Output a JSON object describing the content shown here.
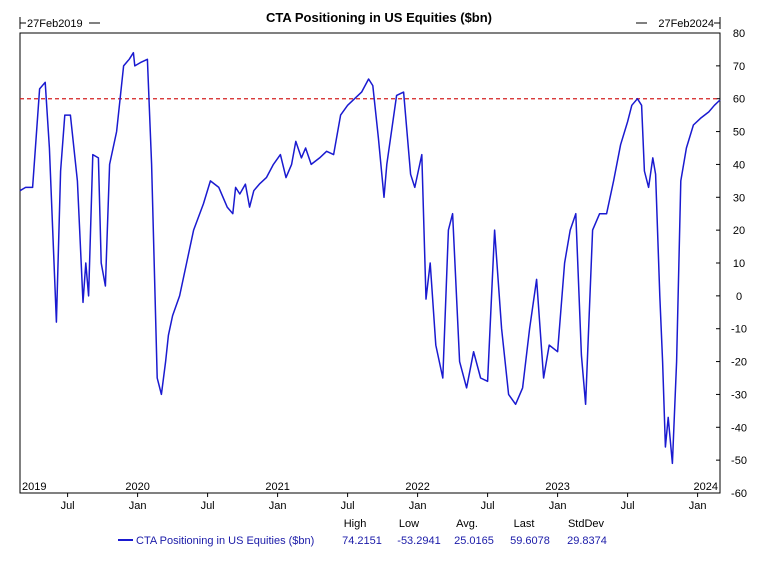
{
  "chart_data": {
    "type": "line",
    "title": "CTA Positioning in US Equities ($bn)",
    "start_label": "27Feb2019",
    "end_label": "27Feb2024",
    "ylim": [
      -60,
      80
    ],
    "y_ticks": [
      80,
      70,
      60,
      50,
      40,
      30,
      20,
      10,
      0,
      -10,
      -20,
      -30,
      -40,
      -50,
      -60
    ],
    "reference_line": {
      "value": 60,
      "style": "dashed",
      "color": "#d42020"
    },
    "x_range": [
      2019.16,
      2024.16
    ],
    "year_labels": [
      {
        "label": "2019",
        "x": 2019.16
      },
      {
        "label": "2020",
        "x": 2020.0
      },
      {
        "label": "2021",
        "x": 2021.0
      },
      {
        "label": "2022",
        "x": 2022.0
      },
      {
        "label": "2023",
        "x": 2023.0
      },
      {
        "label": "2024",
        "x": 2024.0
      }
    ],
    "month_labels": [
      {
        "label": "Jul",
        "x": 2019.5
      },
      {
        "label": "Jan",
        "x": 2020.0
      },
      {
        "label": "Jul",
        "x": 2020.5
      },
      {
        "label": "Jan",
        "x": 2021.0
      },
      {
        "label": "Jul",
        "x": 2021.5
      },
      {
        "label": "Jan",
        "x": 2022.0
      },
      {
        "label": "Jul",
        "x": 2022.5
      },
      {
        "label": "Jan",
        "x": 2023.0
      },
      {
        "label": "Jul",
        "x": 2023.5
      },
      {
        "label": "Jan",
        "x": 2024.0
      }
    ],
    "series": [
      {
        "name": "CTA Positioning in US Equities ($bn)",
        "color": "#1a1ad0",
        "x": [
          2019.16,
          2019.2,
          2019.25,
          2019.3,
          2019.34,
          2019.37,
          2019.42,
          2019.45,
          2019.48,
          2019.52,
          2019.57,
          2019.61,
          2019.63,
          2019.65,
          2019.68,
          2019.72,
          2019.74,
          2019.77,
          2019.8,
          2019.85,
          2019.9,
          2019.94,
          2019.97,
          2019.98,
          2020.02,
          2020.07,
          2020.1,
          2020.14,
          2020.17,
          2020.2,
          2020.22,
          2020.25,
          2020.3,
          2020.35,
          2020.4,
          2020.47,
          2020.52,
          2020.58,
          2020.64,
          2020.68,
          2020.7,
          2020.73,
          2020.77,
          2020.8,
          2020.83,
          2020.87,
          2020.92,
          2020.97,
          2021.02,
          2021.06,
          2021.1,
          2021.13,
          2021.17,
          2021.2,
          2021.24,
          2021.3,
          2021.35,
          2021.4,
          2021.45,
          2021.5,
          2021.55,
          2021.6,
          2021.65,
          2021.68,
          2021.72,
          2021.76,
          2021.78,
          2021.82,
          2021.85,
          2021.9,
          2021.95,
          2021.98,
          2022.03,
          2022.06,
          2022.09,
          2022.13,
          2022.18,
          2022.22,
          2022.25,
          2022.3,
          2022.35,
          2022.4,
          2022.45,
          2022.5,
          2022.55,
          2022.6,
          2022.65,
          2022.7,
          2022.75,
          2022.8,
          2022.85,
          2022.9,
          2022.94,
          2023.0,
          2023.05,
          2023.09,
          2023.13,
          2023.17,
          2023.2,
          2023.25,
          2023.3,
          2023.35,
          2023.4,
          2023.45,
          2023.5,
          2023.53,
          2023.57,
          2023.6,
          2023.62,
          2023.65,
          2023.68,
          2023.7,
          2023.73,
          2023.75,
          2023.77,
          2023.79,
          2023.82,
          2023.85,
          2023.88,
          2023.92,
          2023.97,
          2024.02,
          2024.08,
          2024.12,
          2024.16
        ],
        "y": [
          32,
          33,
          33,
          63,
          65,
          45,
          -8,
          38,
          55,
          55,
          35,
          -2,
          10,
          0,
          43,
          42,
          10,
          3,
          40,
          50,
          70,
          72,
          74,
          70,
          71,
          72,
          40,
          -25,
          -30,
          -20,
          -12,
          -6,
          0,
          10,
          20,
          28,
          35,
          33,
          27,
          25,
          33,
          31,
          34,
          27,
          32,
          34,
          36,
          40,
          43,
          36,
          40,
          47,
          42,
          45,
          40,
          42,
          44,
          43,
          55,
          58,
          60,
          62,
          66,
          64,
          48,
          30,
          40,
          52,
          61,
          62,
          37,
          33,
          43,
          -1,
          10,
          -15,
          -25,
          20,
          25,
          -20,
          -28,
          -17,
          -25,
          -26,
          20,
          -10,
          -30,
          -33,
          -28,
          -10,
          5,
          -25,
          -15,
          -17,
          10,
          20,
          25,
          -18,
          -33,
          20,
          25,
          25,
          35,
          46,
          53,
          58,
          60,
          58,
          38,
          33,
          42,
          37,
          0,
          -20,
          -46,
          -37,
          -51,
          -20,
          35,
          45,
          52,
          54,
          56,
          58,
          59.6
        ]
      }
    ],
    "stats": {
      "headers": [
        "High",
        "Low",
        "Avg.",
        "Last",
        "StdDev"
      ],
      "values": [
        "74.2151",
        "-53.2941",
        "25.0165",
        "59.6078",
        "29.8374"
      ]
    }
  }
}
